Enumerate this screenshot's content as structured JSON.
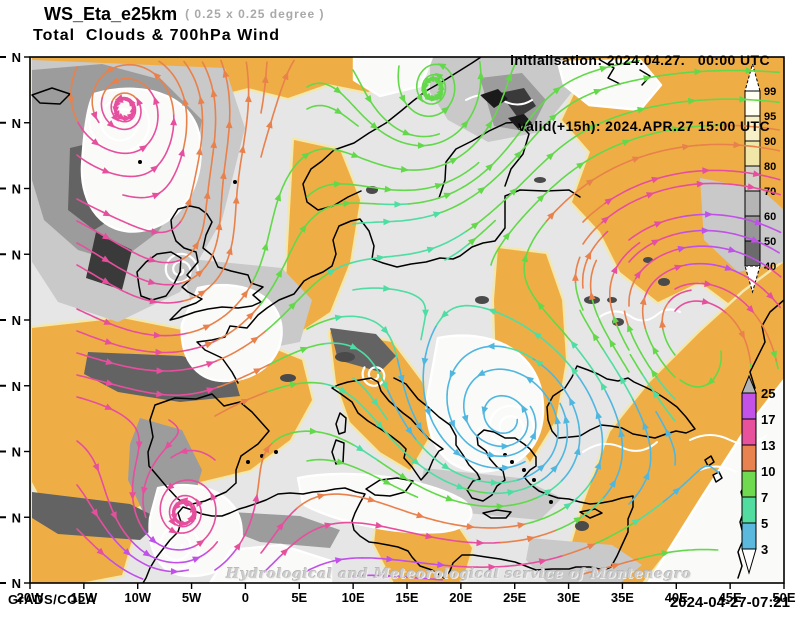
{
  "header": {
    "model": "WS_Eta_e25km",
    "resolution": "( 0.25 x 0.25 degree )",
    "product": "Total  Clouds & 700hPa Wind",
    "init_line": "initialisation: 2024.04.27.   00:00 UTC",
    "valid_line": "valid(+15h): 2024.APR.27 15:00 UTC"
  },
  "footer": {
    "engine": "GrADS/COLA",
    "generated": "2024-04-27-07:21",
    "watermark": "Hydrological and Meteorological service of Montenegro"
  },
  "axes": {
    "x_tick_labels": [
      "20W",
      "15W",
      "10W",
      "5W",
      "0",
      "5E",
      "10E",
      "15E",
      "20E",
      "25E",
      "30E",
      "35E",
      "40E",
      "45E",
      "50E"
    ],
    "y_tick_labels": [
      "N",
      "N",
      "N",
      "N",
      "N",
      "N",
      "N",
      "N",
      "N"
    ]
  },
  "legends": {
    "wind_speed": {
      "values": [
        "25",
        "17",
        "13",
        "10",
        "7",
        "5",
        "3"
      ],
      "segment_colors": [
        "#c353e8",
        "#e8519b",
        "#e8824e",
        "#6fd94f",
        "#52dca0",
        "#5ab9dd"
      ],
      "above_max_color": "#b3b3b3",
      "below_min_color": "#ffffff"
    },
    "cloud_cover": {
      "values": [
        "99",
        "95",
        "90",
        "80",
        "70",
        "60",
        "50",
        "40"
      ],
      "segment_colors": [
        "#fffff2",
        "#f8f1c8",
        "#efe6a8",
        "#d2d2c6",
        "#b5b5b5",
        "#979797",
        "#6b6b6b"
      ],
      "above_max_color": "#ffffff",
      "below_min_color": "#ffffff"
    }
  },
  "map_colors": {
    "clear_fill": "#efae45",
    "clear_fringe": "#f2e7ac",
    "overcast_base": "#e6e6e6",
    "cloud_light": "#c9c9c9",
    "cloud_mid": "#9c9c9c",
    "cloud_dark": "#636363",
    "cloud_darkest": "#3a3a3a",
    "cloud_white": "#fafaf8",
    "coastline": "#000000",
    "contour": "#ffffff",
    "stream_blue": "#4fb6e0",
    "stream_teal": "#4edda2",
    "stream_green": "#63d84a",
    "stream_orange": "#e8814b",
    "stream_pink": "#e64f9d",
    "stream_purple": "#c050e8"
  }
}
